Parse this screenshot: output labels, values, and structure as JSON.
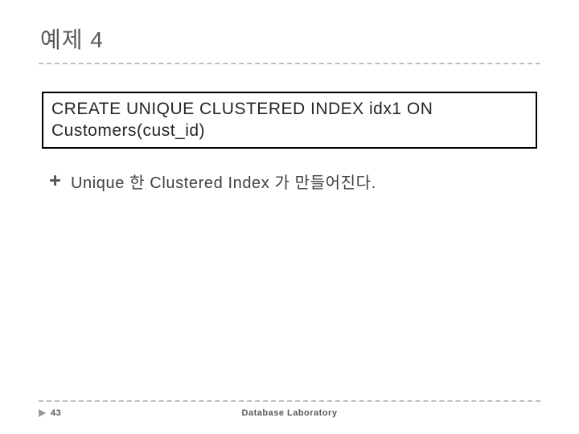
{
  "title": "예제 4",
  "code_box": {
    "line1": "CREATE UNIQUE CLUSTERED INDEX idx1 ON",
    "line2": "Customers(cust_id)"
  },
  "bullet_text": "Unique 한 Clustered Index 가 만들어진다.",
  "footer": {
    "page_number": "43",
    "lab": "Database Laboratory"
  },
  "colors": {
    "title_text": "#595959",
    "dash_line": "#bfbfbf",
    "box_border": "#000000",
    "body_text": "#404040",
    "footer_text": "#595959",
    "arrow": "#9a9a9a",
    "background": "#ffffff"
  },
  "typography": {
    "title_fontsize": 28,
    "code_fontsize": 21,
    "bullet_fontsize": 20,
    "footer_fontsize": 11
  }
}
